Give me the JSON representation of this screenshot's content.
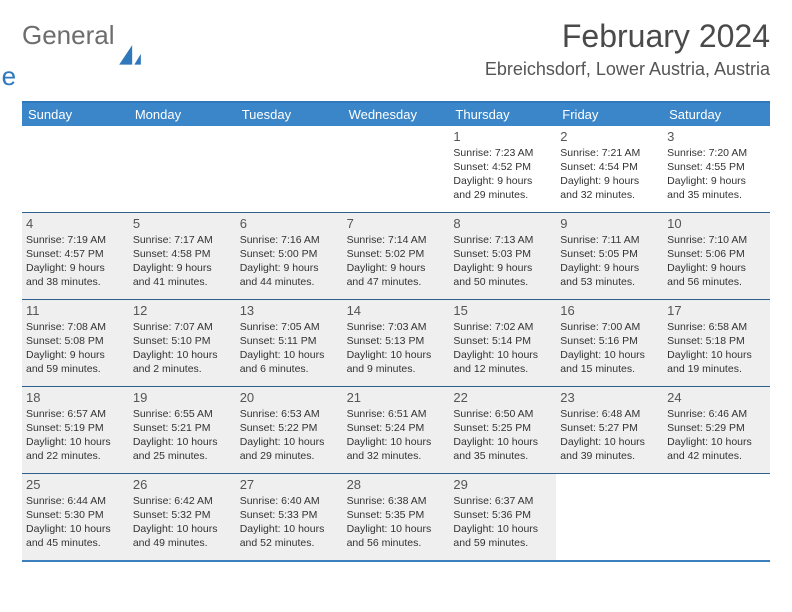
{
  "logo": {
    "text1": "General",
    "text2": "Blue"
  },
  "title": "February 2024",
  "location": "Ebreichsdorf, Lower Austria, Austria",
  "colors": {
    "header_bg": "#3b86c8",
    "border": "#2f5f8e",
    "shaded_bg": "#efefef",
    "logo_gray": "#6d6d6d",
    "logo_blue": "#2f78bb"
  },
  "weekdays": [
    "Sunday",
    "Monday",
    "Tuesday",
    "Wednesday",
    "Thursday",
    "Friday",
    "Saturday"
  ],
  "weeks": [
    [
      {
        "day": "",
        "shaded": false
      },
      {
        "day": "",
        "shaded": false
      },
      {
        "day": "",
        "shaded": false
      },
      {
        "day": "",
        "shaded": false
      },
      {
        "day": "1",
        "shaded": false,
        "sunrise": "Sunrise: 7:23 AM",
        "sunset": "Sunset: 4:52 PM",
        "daylight1": "Daylight: 9 hours",
        "daylight2": "and 29 minutes."
      },
      {
        "day": "2",
        "shaded": false,
        "sunrise": "Sunrise: 7:21 AM",
        "sunset": "Sunset: 4:54 PM",
        "daylight1": "Daylight: 9 hours",
        "daylight2": "and 32 minutes."
      },
      {
        "day": "3",
        "shaded": false,
        "sunrise": "Sunrise: 7:20 AM",
        "sunset": "Sunset: 4:55 PM",
        "daylight1": "Daylight: 9 hours",
        "daylight2": "and 35 minutes."
      }
    ],
    [
      {
        "day": "4",
        "shaded": true,
        "sunrise": "Sunrise: 7:19 AM",
        "sunset": "Sunset: 4:57 PM",
        "daylight1": "Daylight: 9 hours",
        "daylight2": "and 38 minutes."
      },
      {
        "day": "5",
        "shaded": true,
        "sunrise": "Sunrise: 7:17 AM",
        "sunset": "Sunset: 4:58 PM",
        "daylight1": "Daylight: 9 hours",
        "daylight2": "and 41 minutes."
      },
      {
        "day": "6",
        "shaded": true,
        "sunrise": "Sunrise: 7:16 AM",
        "sunset": "Sunset: 5:00 PM",
        "daylight1": "Daylight: 9 hours",
        "daylight2": "and 44 minutes."
      },
      {
        "day": "7",
        "shaded": true,
        "sunrise": "Sunrise: 7:14 AM",
        "sunset": "Sunset: 5:02 PM",
        "daylight1": "Daylight: 9 hours",
        "daylight2": "and 47 minutes."
      },
      {
        "day": "8",
        "shaded": true,
        "sunrise": "Sunrise: 7:13 AM",
        "sunset": "Sunset: 5:03 PM",
        "daylight1": "Daylight: 9 hours",
        "daylight2": "and 50 minutes."
      },
      {
        "day": "9",
        "shaded": true,
        "sunrise": "Sunrise: 7:11 AM",
        "sunset": "Sunset: 5:05 PM",
        "daylight1": "Daylight: 9 hours",
        "daylight2": "and 53 minutes."
      },
      {
        "day": "10",
        "shaded": true,
        "sunrise": "Sunrise: 7:10 AM",
        "sunset": "Sunset: 5:06 PM",
        "daylight1": "Daylight: 9 hours",
        "daylight2": "and 56 minutes."
      }
    ],
    [
      {
        "day": "11",
        "shaded": true,
        "sunrise": "Sunrise: 7:08 AM",
        "sunset": "Sunset: 5:08 PM",
        "daylight1": "Daylight: 9 hours",
        "daylight2": "and 59 minutes."
      },
      {
        "day": "12",
        "shaded": true,
        "sunrise": "Sunrise: 7:07 AM",
        "sunset": "Sunset: 5:10 PM",
        "daylight1": "Daylight: 10 hours",
        "daylight2": "and 2 minutes."
      },
      {
        "day": "13",
        "shaded": true,
        "sunrise": "Sunrise: 7:05 AM",
        "sunset": "Sunset: 5:11 PM",
        "daylight1": "Daylight: 10 hours",
        "daylight2": "and 6 minutes."
      },
      {
        "day": "14",
        "shaded": true,
        "sunrise": "Sunrise: 7:03 AM",
        "sunset": "Sunset: 5:13 PM",
        "daylight1": "Daylight: 10 hours",
        "daylight2": "and 9 minutes."
      },
      {
        "day": "15",
        "shaded": true,
        "sunrise": "Sunrise: 7:02 AM",
        "sunset": "Sunset: 5:14 PM",
        "daylight1": "Daylight: 10 hours",
        "daylight2": "and 12 minutes."
      },
      {
        "day": "16",
        "shaded": true,
        "sunrise": "Sunrise: 7:00 AM",
        "sunset": "Sunset: 5:16 PM",
        "daylight1": "Daylight: 10 hours",
        "daylight2": "and 15 minutes."
      },
      {
        "day": "17",
        "shaded": true,
        "sunrise": "Sunrise: 6:58 AM",
        "sunset": "Sunset: 5:18 PM",
        "daylight1": "Daylight: 10 hours",
        "daylight2": "and 19 minutes."
      }
    ],
    [
      {
        "day": "18",
        "shaded": true,
        "sunrise": "Sunrise: 6:57 AM",
        "sunset": "Sunset: 5:19 PM",
        "daylight1": "Daylight: 10 hours",
        "daylight2": "and 22 minutes."
      },
      {
        "day": "19",
        "shaded": true,
        "sunrise": "Sunrise: 6:55 AM",
        "sunset": "Sunset: 5:21 PM",
        "daylight1": "Daylight: 10 hours",
        "daylight2": "and 25 minutes."
      },
      {
        "day": "20",
        "shaded": true,
        "sunrise": "Sunrise: 6:53 AM",
        "sunset": "Sunset: 5:22 PM",
        "daylight1": "Daylight: 10 hours",
        "daylight2": "and 29 minutes."
      },
      {
        "day": "21",
        "shaded": true,
        "sunrise": "Sunrise: 6:51 AM",
        "sunset": "Sunset: 5:24 PM",
        "daylight1": "Daylight: 10 hours",
        "daylight2": "and 32 minutes."
      },
      {
        "day": "22",
        "shaded": true,
        "sunrise": "Sunrise: 6:50 AM",
        "sunset": "Sunset: 5:25 PM",
        "daylight1": "Daylight: 10 hours",
        "daylight2": "and 35 minutes."
      },
      {
        "day": "23",
        "shaded": true,
        "sunrise": "Sunrise: 6:48 AM",
        "sunset": "Sunset: 5:27 PM",
        "daylight1": "Daylight: 10 hours",
        "daylight2": "and 39 minutes."
      },
      {
        "day": "24",
        "shaded": true,
        "sunrise": "Sunrise: 6:46 AM",
        "sunset": "Sunset: 5:29 PM",
        "daylight1": "Daylight: 10 hours",
        "daylight2": "and 42 minutes."
      }
    ],
    [
      {
        "day": "25",
        "shaded": true,
        "sunrise": "Sunrise: 6:44 AM",
        "sunset": "Sunset: 5:30 PM",
        "daylight1": "Daylight: 10 hours",
        "daylight2": "and 45 minutes."
      },
      {
        "day": "26",
        "shaded": true,
        "sunrise": "Sunrise: 6:42 AM",
        "sunset": "Sunset: 5:32 PM",
        "daylight1": "Daylight: 10 hours",
        "daylight2": "and 49 minutes."
      },
      {
        "day": "27",
        "shaded": true,
        "sunrise": "Sunrise: 6:40 AM",
        "sunset": "Sunset: 5:33 PM",
        "daylight1": "Daylight: 10 hours",
        "daylight2": "and 52 minutes."
      },
      {
        "day": "28",
        "shaded": true,
        "sunrise": "Sunrise: 6:38 AM",
        "sunset": "Sunset: 5:35 PM",
        "daylight1": "Daylight: 10 hours",
        "daylight2": "and 56 minutes."
      },
      {
        "day": "29",
        "shaded": true,
        "sunrise": "Sunrise: 6:37 AM",
        "sunset": "Sunset: 5:36 PM",
        "daylight1": "Daylight: 10 hours",
        "daylight2": "and 59 minutes."
      },
      {
        "day": "",
        "shaded": false
      },
      {
        "day": "",
        "shaded": false
      }
    ]
  ]
}
